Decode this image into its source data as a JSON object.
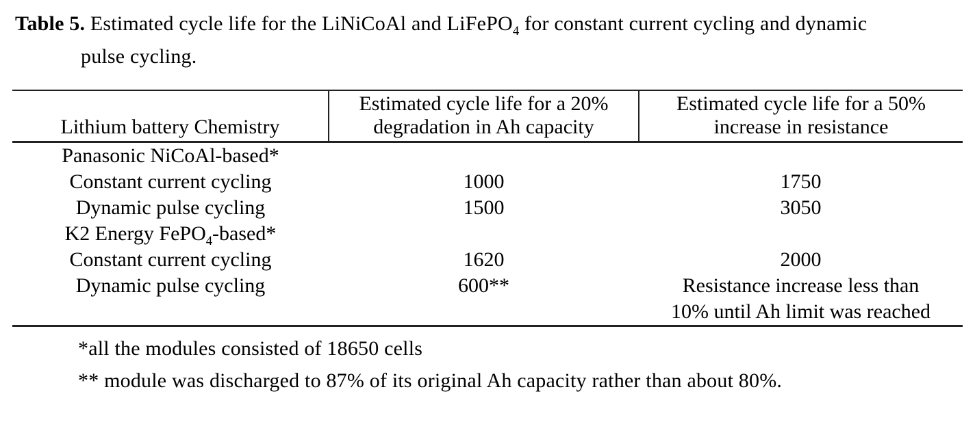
{
  "colors": {
    "text": "#000000",
    "rule": "#222222",
    "background": "#ffffff"
  },
  "caption": {
    "segments": [
      {
        "t": "Table 5.",
        "bold": true
      },
      {
        "t": " Estimated cycle life for the LiNiCoAl and LiFePO"
      },
      {
        "t": "4",
        "sub": true
      },
      {
        "t": " for constant current cycling and dynamic"
      },
      {
        "br": true
      },
      {
        "t": "pulse cycling."
      }
    ]
  },
  "table": {
    "headers": [
      {
        "lines": [
          "Lithium battery Chemistry"
        ]
      },
      {
        "lines": [
          "Estimated cycle life for a 20%",
          "degradation in Ah capacity"
        ]
      },
      {
        "lines": [
          "Estimated cycle life for a 50%",
          "increase in resistance"
        ]
      }
    ],
    "rows": [
      {
        "cells": [
          [
            {
              "t": "Panasonic NiCoAl-based*"
            }
          ],
          [],
          []
        ]
      },
      {
        "cells": [
          [
            {
              "t": "Constant current cycling"
            }
          ],
          [
            {
              "t": "1000"
            }
          ],
          [
            {
              "t": "1750"
            }
          ]
        ]
      },
      {
        "cells": [
          [
            {
              "t": "Dynamic pulse cycling"
            }
          ],
          [
            {
              "t": "1500"
            }
          ],
          [
            {
              "t": "3050"
            }
          ]
        ]
      },
      {
        "cells": [
          [
            {
              "t": "K2 Energy FePO"
            },
            {
              "t": "4",
              "sub": true
            },
            {
              "t": "-based*"
            }
          ],
          [],
          []
        ]
      },
      {
        "cells": [
          [
            {
              "t": "Constant current cycling"
            }
          ],
          [
            {
              "t": "1620"
            }
          ],
          [
            {
              "t": "2000"
            }
          ]
        ]
      },
      {
        "cells": [
          [
            {
              "t": "Dynamic pulse cycling"
            }
          ],
          [
            {
              "t": "600**"
            }
          ],
          [
            {
              "t": "Resistance increase less than"
            },
            {
              "br": true
            },
            {
              "t": "10% until Ah limit was reached"
            }
          ]
        ]
      }
    ]
  },
  "footnotes": [
    {
      "text": "*all the modules consisted of 18650 cells"
    },
    {
      "text": "** module was discharged to 87% of its original Ah capacity rather than about 80%."
    }
  ]
}
